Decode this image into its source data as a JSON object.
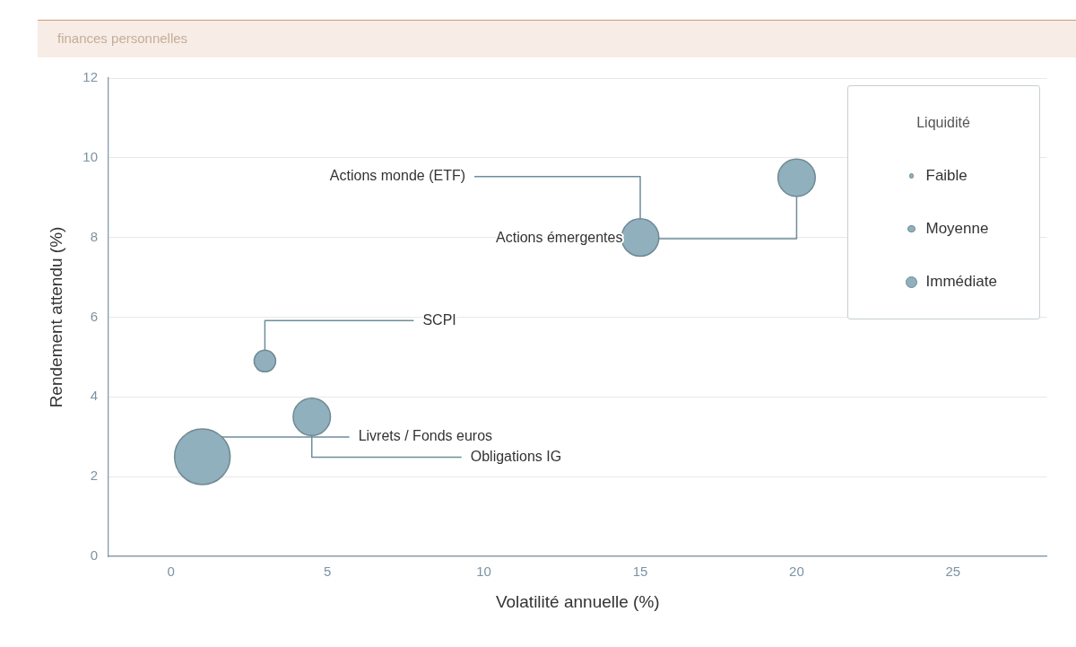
{
  "chart_data": {
    "type": "bubble",
    "subtitle": "finances personnelles",
    "xlabel": "Volatilité annuelle (%)",
    "ylabel": "Rendement attendu (%)",
    "legend_title": "Liquidité",
    "series": [
      {
        "name": "Faible",
        "color": "#8fb0bc",
        "x": [
          3
        ],
        "values": [
          4.9
        ],
        "sizes": [
          0.15
        ]
      },
      {
        "name": "Moyenne",
        "color": "#8fb0bc",
        "x": [
          4.5,
          15,
          20
        ],
        "values": [
          3.5,
          8,
          9.5
        ],
        "sizes": [
          0.45,
          0.45,
          0.45
        ]
      },
      {
        "name": "Immédiate",
        "color": "#8fb0bc",
        "x": [
          1
        ],
        "values": [
          2.5
        ],
        "sizes": [
          1
        ]
      }
    ],
    "annotations": [
      {
        "text": "Livrets / Fonds euros",
        "x": 1,
        "y": 2.5
      },
      {
        "text": "Obligations IG",
        "x": 4.5,
        "y": 3.5
      },
      {
        "text": "SCPI",
        "x": 3,
        "y": 4.9
      },
      {
        "text": "Actions monde (ETF)",
        "x": 15,
        "y": 8
      },
      {
        "text": "Actions émergentes",
        "x": 20,
        "y": 9.5
      }
    ],
    "xlim": [
      -2,
      28
    ],
    "xticks": [
      0,
      5,
      10,
      15,
      20,
      25
    ],
    "ylim": [
      0,
      12
    ],
    "yticks": [
      0,
      2,
      4,
      6,
      8,
      10,
      12
    ],
    "grid": "y",
    "legend": "top right"
  }
}
